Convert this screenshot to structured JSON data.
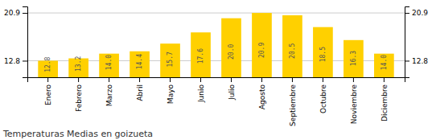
{
  "chart_data": {
    "type": "bar",
    "title": "Temperaturas Medias en goizueta",
    "categories": [
      "Enero",
      "Febrero",
      "Marzo",
      "Abril",
      "Mayo",
      "Junio",
      "Julio",
      "Agosto",
      "Septiembre",
      "Octubre",
      "Noviembre",
      "Diciembre"
    ],
    "values": [
      12.8,
      13.2,
      14.0,
      14.4,
      15.7,
      17.6,
      20.0,
      20.9,
      20.5,
      18.5,
      16.3,
      14.0
    ],
    "value_labels": [
      "12.8",
      "13.2",
      "14.0",
      "14.4",
      "15.7",
      "17.6",
      "20.0",
      "20.9",
      "20.5",
      "18.5",
      "16.3",
      "14.0"
    ],
    "color": "#FFD000",
    "ylim": [
      10.0,
      22.0
    ],
    "yticks": [
      12.8,
      20.9
    ],
    "grid": true,
    "data_labels": true
  }
}
